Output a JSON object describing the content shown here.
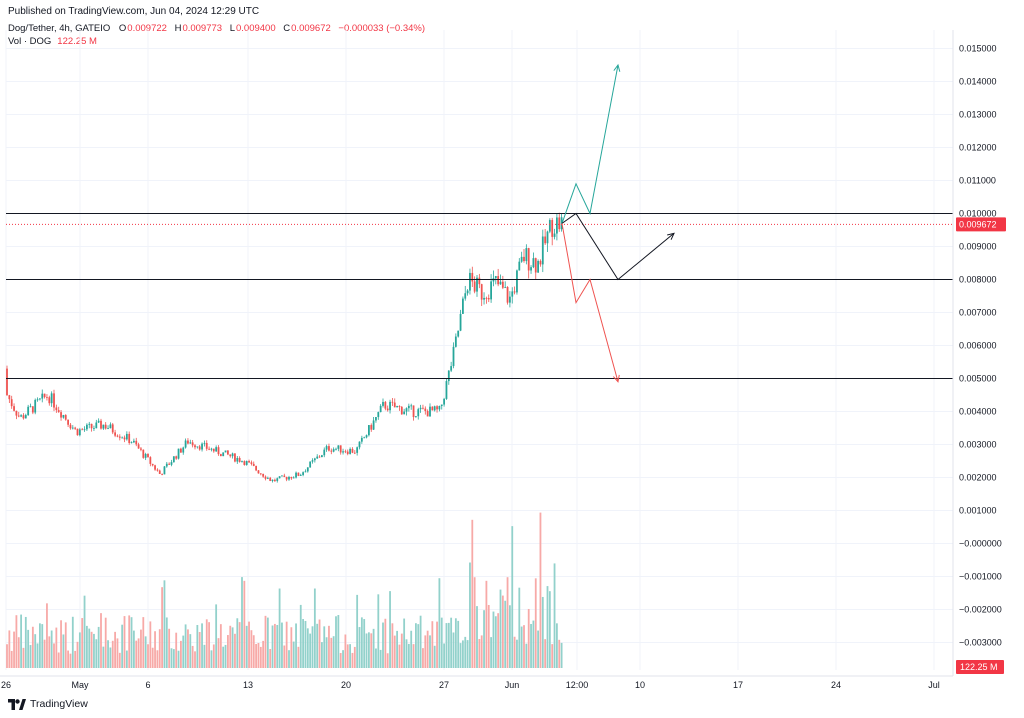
{
  "header": {
    "published": "Published on TradingView.com, Jun 04, 2024 12:29 UTC"
  },
  "legend": {
    "symbol": "Dog/Tether, 4h, GATEIO",
    "o_label": "O",
    "o_value": "0.009722",
    "h_label": "H",
    "h_value": "0.009773",
    "l_label": "L",
    "l_value": "0.009400",
    "c_label": "C",
    "c_value": "0.009672",
    "change": "−0.000033 (−0.34%)",
    "vol_label": "Vol · DOG",
    "vol_value": "122.25 M"
  },
  "footer": {
    "brand": "TradingView",
    "logo_icon": "tradingview-logo-icon"
  },
  "colors": {
    "up": "#26a69a",
    "down": "#ef5350",
    "vol_up": "#92d1cb",
    "vol_down": "#f7a9a7",
    "price_label": "#f23645"
  },
  "chart_data": {
    "type": "candlestick",
    "title": "Dog/Tether, 4h, GATEIO",
    "price_axis": {
      "ticks": [
        "0.015000",
        "0.014000",
        "0.013000",
        "0.012000",
        "0.011000",
        "0.010000",
        "0.009000",
        "0.008000",
        "0.007000",
        "0.006000",
        "0.005000",
        "0.004000",
        "0.003000",
        "0.002000",
        "0.001000",
        "−0.000000",
        "−0.001000",
        "−0.002000",
        "−0.003000"
      ],
      "current_price_label": "0.009672",
      "volume_label": "122.25 M"
    },
    "time_axis": {
      "ticks": [
        "26",
        "May",
        "6",
        "13",
        "20",
        "27",
        "Jun",
        "12:00",
        "10",
        "17",
        "24",
        "Jul"
      ]
    },
    "horizontal_levels": [
      0.01,
      0.008,
      0.005
    ],
    "current_price": 0.009672,
    "close_path": [
      [
        "2024-04-25",
        0.0053
      ],
      [
        "2024-04-27",
        0.0038
      ],
      [
        "2024-04-29",
        0.0045
      ],
      [
        "2024-05-01",
        0.0034
      ],
      [
        "2024-05-03",
        0.0036
      ],
      [
        "2024-05-05",
        0.0031
      ],
      [
        "2024-05-07",
        0.0021
      ],
      [
        "2024-05-09",
        0.0031
      ],
      [
        "2024-05-11",
        0.0028
      ],
      [
        "2024-05-13",
        0.0025
      ],
      [
        "2024-05-15",
        0.0019
      ],
      [
        "2024-05-17",
        0.0021
      ],
      [
        "2024-05-19",
        0.0029
      ],
      [
        "2024-05-21",
        0.0028
      ],
      [
        "2024-05-23",
        0.0042
      ],
      [
        "2024-05-25",
        0.004
      ],
      [
        "2024-05-27",
        0.004
      ],
      [
        "2024-05-28",
        0.0058
      ],
      [
        "2024-05-29",
        0.008
      ],
      [
        "2024-05-30",
        0.0076
      ],
      [
        "2024-05-31",
        0.0079
      ],
      [
        "2024-06-01",
        0.0074
      ],
      [
        "2024-06-02",
        0.0087
      ],
      [
        "2024-06-03",
        0.0085
      ],
      [
        "2024-06-04",
        0.0097
      ]
    ],
    "projections": [
      {
        "color": "#26a69a",
        "points": [
          [
            "2024-06-04",
            0.0097
          ],
          [
            "2024-06-05",
            0.0109
          ],
          [
            "2024-06-06",
            0.01
          ],
          [
            "2024-06-08",
            0.0145
          ]
        ]
      },
      {
        "color": "#131722",
        "points": [
          [
            "2024-06-04",
            0.0097
          ],
          [
            "2024-06-05",
            0.01
          ],
          [
            "2024-06-08",
            0.008
          ],
          [
            "2024-06-12",
            0.0094
          ]
        ]
      },
      {
        "color": "#ef5350",
        "points": [
          [
            "2024-06-04",
            0.0097
          ],
          [
            "2024-06-05",
            0.0073
          ],
          [
            "2024-06-06",
            0.008
          ],
          [
            "2024-06-08",
            0.0049
          ]
        ]
      }
    ]
  }
}
